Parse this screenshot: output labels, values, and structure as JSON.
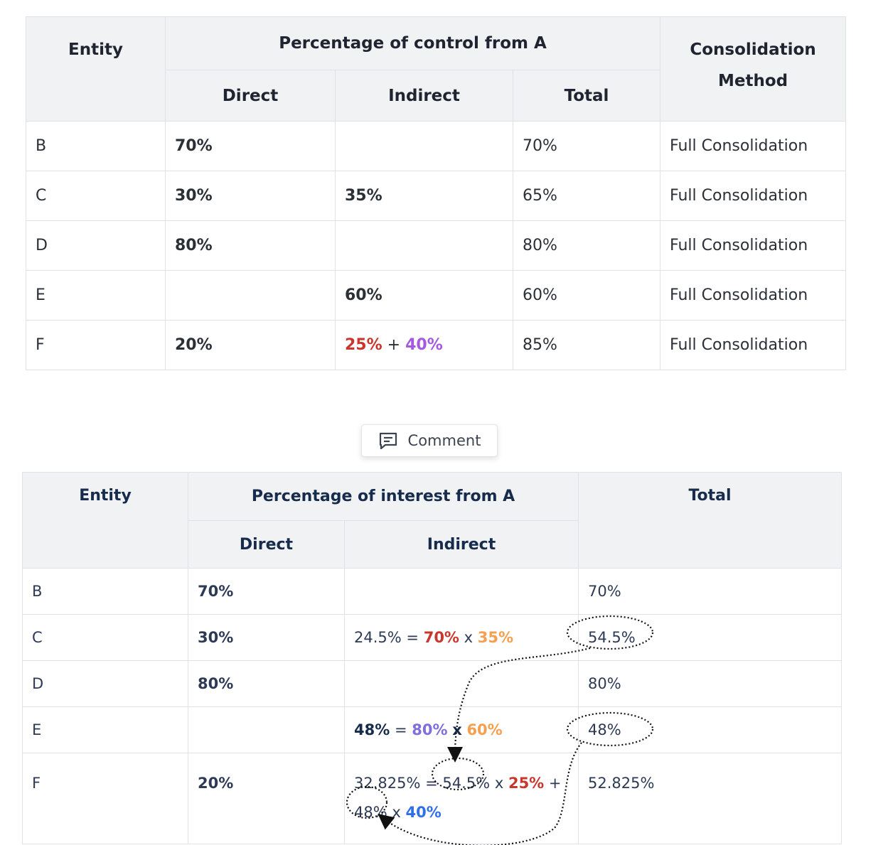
{
  "control_table": {
    "headers": {
      "entity": "Entity",
      "percentage": "Percentage of control from A",
      "consolidation": "Consolidation Method",
      "direct": "Direct",
      "indirect": "Indirect",
      "total": "Total"
    },
    "rows": [
      {
        "entity": "B",
        "direct": "70%",
        "indirect_a": "",
        "indirect_plus": "",
        "indirect_b": "",
        "total": "70%",
        "method": "Full Consolidation"
      },
      {
        "entity": "C",
        "direct": "30%",
        "indirect_a": "35%",
        "indirect_plus": "",
        "indirect_b": "",
        "total": "65%",
        "method": "Full Consolidation"
      },
      {
        "entity": "D",
        "direct": "80%",
        "indirect_a": "",
        "indirect_plus": "",
        "indirect_b": "",
        "total": "80%",
        "method": "Full Consolidation"
      },
      {
        "entity": "E",
        "direct": "",
        "indirect_a": "60%",
        "indirect_plus": "",
        "indirect_b": "",
        "total": "60%",
        "method": "Full Consolidation"
      },
      {
        "entity": "F",
        "direct": "20%",
        "indirect_a": "25%",
        "indirect_plus": "+",
        "indirect_b": "40%",
        "total": "85%",
        "method": "Full Consolidation"
      }
    ]
  },
  "comment_button": {
    "label": "Comment",
    "icon": "comment-icon"
  },
  "interest_table": {
    "headers": {
      "entity": "Entity",
      "percentage": "Percentage of interest from A",
      "total": "Total",
      "direct": "Direct",
      "indirect": "Indirect"
    },
    "rows": [
      {
        "entity": "B",
        "direct": "70%",
        "total": "70%"
      },
      {
        "entity": "C",
        "direct": "30%",
        "total": "54.5%",
        "formula": {
          "result": "24.5%",
          "eq": "=",
          "a": "70%",
          "x": "x",
          "b": "35%"
        }
      },
      {
        "entity": "D",
        "direct": "80%",
        "total": "80%"
      },
      {
        "entity": "E",
        "direct": "",
        "total": "48%",
        "formula": {
          "result": "48%",
          "eq": "=",
          "a": "80%",
          "x": "x",
          "b": "60%"
        }
      },
      {
        "entity": "F",
        "direct": "20%",
        "total": "52.825%",
        "formula": {
          "result": "32.825%",
          "eq": "=",
          "a": "54.5%",
          "x1": "x",
          "b": "25%",
          "plus": "+",
          "c": "48%",
          "x2": "x",
          "d": "40%"
        }
      }
    ]
  }
}
